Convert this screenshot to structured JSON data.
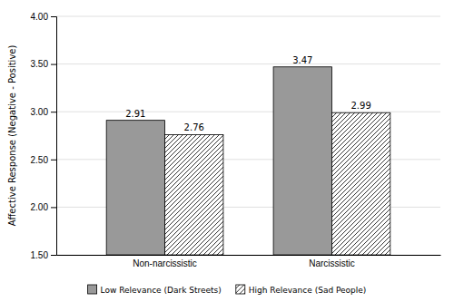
{
  "chart_data": {
    "type": "bar",
    "categories": [
      "Non-narcissistic",
      "Narcissistic"
    ],
    "series": [
      {
        "name": "Low Relevance (Dark Streets)",
        "color": "#999999",
        "values": [
          2.91,
          3.47
        ]
      },
      {
        "name": "High Relevance (Sad People)",
        "color": "#ffffff",
        "values": [
          2.76,
          2.99
        ]
      }
    ],
    "ylabel": "Affective Response (Negative - Positive)",
    "ylim": [
      1.5,
      4.0
    ],
    "yticks": [
      {
        "value": 1.5,
        "label": "1.50"
      },
      {
        "value": 2.0,
        "label": "2.00"
      },
      {
        "value": 2.5,
        "label": "2.50"
      },
      {
        "value": 3.0,
        "label": "3.00"
      },
      {
        "value": 3.5,
        "label": "3.50"
      },
      {
        "value": 4.0,
        "label": "4.00"
      }
    ],
    "grid": true,
    "data_labels": true,
    "legend": "bottom"
  }
}
